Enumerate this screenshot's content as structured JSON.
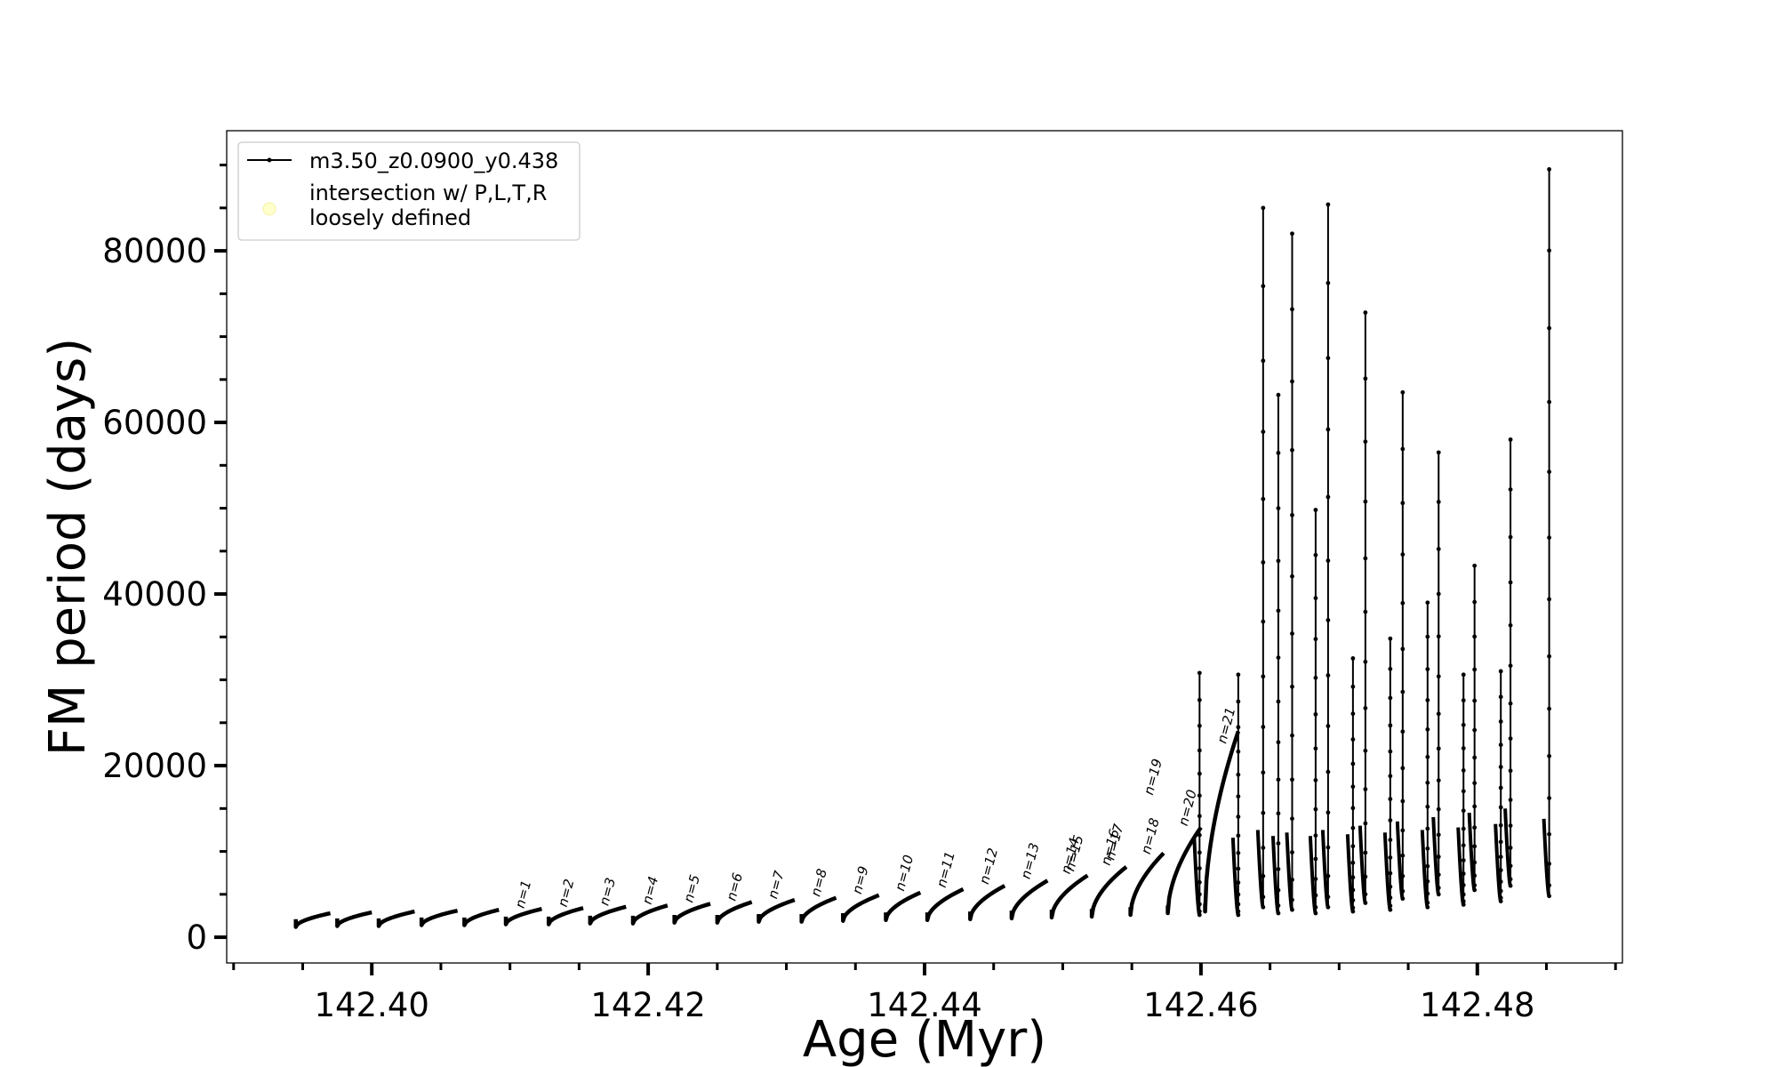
{
  "chart_data": {
    "type": "line",
    "xlabel": "Age (Myr)",
    "ylabel": "FM period (days)",
    "xlim": [
      142.3895,
      142.4905
    ],
    "ylim": [
      -3000,
      94000
    ],
    "x_ticks": [
      142.4,
      142.42,
      142.44,
      142.46,
      142.48
    ],
    "x_tick_labels": [
      "142.40",
      "142.42",
      "142.44",
      "142.46",
      "142.48"
    ],
    "y_ticks": [
      0,
      20000,
      40000,
      60000,
      80000
    ],
    "y_tick_labels": [
      "0",
      "20000",
      "40000",
      "60000",
      "80000"
    ],
    "grid": false,
    "legend_position": "top-left",
    "legend": [
      {
        "label": "m3.50_z0.0900_y0.438",
        "marker": "line-with-dots",
        "color": "#000000"
      },
      {
        "label": "intersection w/ P,L,T,R\nloosely defined",
        "marker": "circle",
        "color": "#ffffcc"
      }
    ],
    "series": [
      {
        "name": "m3.50_z0.0900_y0.438",
        "color": "#000000",
        "pulses": [
          {
            "start": 142.3945,
            "end": 142.397,
            "low": 1200,
            "high": 2800
          },
          {
            "start": 142.3975,
            "end": 142.4,
            "low": 1300,
            "high": 2900
          },
          {
            "start": 142.4005,
            "end": 142.4031,
            "low": 1300,
            "high": 3000
          },
          {
            "start": 142.4036,
            "end": 142.4062,
            "low": 1400,
            "high": 3100
          },
          {
            "start": 142.4067,
            "end": 142.4092,
            "low": 1400,
            "high": 3200
          },
          {
            "start": 142.4097,
            "end": 142.4123,
            "low": 1500,
            "high": 3300
          },
          {
            "start": 142.4128,
            "end": 142.4153,
            "low": 1500,
            "high": 3400
          },
          {
            "start": 142.4158,
            "end": 142.4184,
            "low": 1600,
            "high": 3550
          },
          {
            "start": 142.4189,
            "end": 142.4214,
            "low": 1600,
            "high": 3700
          },
          {
            "start": 142.4219,
            "end": 142.4245,
            "low": 1700,
            "high": 3900
          },
          {
            "start": 142.425,
            "end": 142.4275,
            "low": 1700,
            "high": 4100
          },
          {
            "start": 142.428,
            "end": 142.4306,
            "low": 1800,
            "high": 4350
          },
          {
            "start": 142.4311,
            "end": 142.4336,
            "low": 1800,
            "high": 4600
          },
          {
            "start": 142.4341,
            "end": 142.4367,
            "low": 1900,
            "high": 4900
          },
          {
            "start": 142.4372,
            "end": 142.4397,
            "low": 2000,
            "high": 5200
          },
          {
            "start": 142.4402,
            "end": 142.4428,
            "low": 2000,
            "high": 5600
          },
          {
            "start": 142.4433,
            "end": 142.4458,
            "low": 2100,
            "high": 6000
          },
          {
            "start": 142.4463,
            "end": 142.4489,
            "low": 2200,
            "high": 6600
          },
          {
            "start": 142.4492,
            "end": 142.4518,
            "low": 2300,
            "high": 7200
          },
          {
            "start": 142.4521,
            "end": 142.4546,
            "low": 2400,
            "high": 8200
          },
          {
            "start": 142.4549,
            "end": 142.4573,
            "low": 2600,
            "high": 9800
          },
          {
            "start": 142.4576,
            "end": 142.46,
            "low": 2800,
            "high": 12800
          },
          {
            "start": 142.4603,
            "end": 142.4627,
            "low": 3000,
            "high": 24000
          }
        ],
        "spikes": [
          {
            "x": 142.4599,
            "low": 2600,
            "high": 30800
          },
          {
            "x": 142.4627,
            "low": 2600,
            "high": 30600
          },
          {
            "x": 142.4645,
            "low": 3500,
            "high": 85000
          },
          {
            "x": 142.4656,
            "low": 2800,
            "high": 63200
          },
          {
            "x": 142.4666,
            "low": 3200,
            "high": 82000
          },
          {
            "x": 142.4683,
            "low": 2800,
            "high": 49800
          },
          {
            "x": 142.4692,
            "low": 3500,
            "high": 85400
          },
          {
            "x": 142.471,
            "low": 3000,
            "high": 32500
          },
          {
            "x": 142.4719,
            "low": 4000,
            "high": 72800
          },
          {
            "x": 142.4737,
            "low": 3200,
            "high": 34800
          },
          {
            "x": 142.4746,
            "low": 4500,
            "high": 63500
          },
          {
            "x": 142.4764,
            "low": 3500,
            "high": 39000
          },
          {
            "x": 142.4772,
            "low": 5000,
            "high": 56500
          },
          {
            "x": 142.479,
            "low": 3800,
            "high": 30600
          },
          {
            "x": 142.4798,
            "low": 5500,
            "high": 43300
          },
          {
            "x": 142.4817,
            "low": 4200,
            "high": 31000
          },
          {
            "x": 142.4824,
            "low": 6000,
            "high": 58000
          },
          {
            "x": 142.4852,
            "low": 4800,
            "high": 89500
          }
        ]
      }
    ],
    "annotations": [
      {
        "text": "n=1",
        "x": 142.411,
        "y": 3300
      },
      {
        "text": "n=2",
        "x": 142.4141,
        "y": 3450
      },
      {
        "text": "n=3",
        "x": 142.4171,
        "y": 3600
      },
      {
        "text": "n=4",
        "x": 142.4202,
        "y": 3750
      },
      {
        "text": "n=5",
        "x": 142.4232,
        "y": 3950
      },
      {
        "text": "n=6",
        "x": 142.4263,
        "y": 4150
      },
      {
        "text": "n=7",
        "x": 142.4293,
        "y": 4400
      },
      {
        "text": "n=8",
        "x": 142.4324,
        "y": 4650
      },
      {
        "text": "n=9",
        "x": 142.4354,
        "y": 4950
      },
      {
        "text": "n=10",
        "x": 142.4385,
        "y": 5300
      },
      {
        "text": "n=11",
        "x": 142.4415,
        "y": 5700
      },
      {
        "text": "n=12",
        "x": 142.4446,
        "y": 6100
      },
      {
        "text": "n=13",
        "x": 142.4476,
        "y": 6700
      },
      {
        "text": "n=14",
        "x": 142.4505,
        "y": 7300
      },
      {
        "text": "n=15",
        "x": 142.4508,
        "y": 7600
      },
      {
        "text": "n=16",
        "x": 142.4534,
        "y": 8300
      },
      {
        "text": "n=17",
        "x": 142.4537,
        "y": 8900
      },
      {
        "text": "n=18",
        "x": 142.4563,
        "y": 9600
      },
      {
        "text": "n=19",
        "x": 142.4565,
        "y": 16500
      },
      {
        "text": "n=20",
        "x": 142.459,
        "y": 12900
      },
      {
        "text": "n=21",
        "x": 142.4618,
        "y": 22500
      }
    ]
  }
}
